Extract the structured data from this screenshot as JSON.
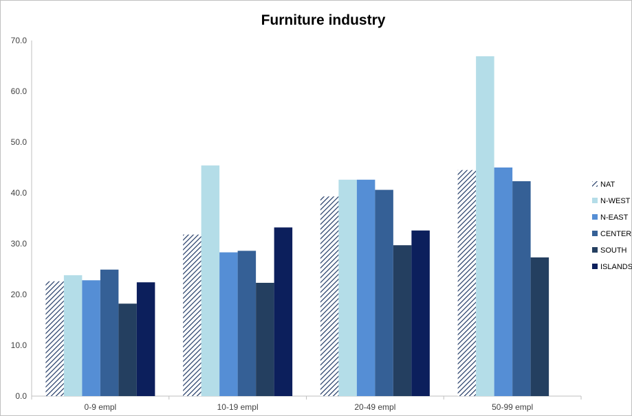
{
  "chart_data": {
    "type": "bar",
    "title": "Furniture industry",
    "categories": [
      "0-9 empl",
      "10-19 empl",
      "20-49 empl",
      "50-99 empl"
    ],
    "ylim": [
      0,
      70
    ],
    "yticks": [
      "0.0",
      "10.0",
      "20.0",
      "30.0",
      "40.0",
      "50.0",
      "60.0",
      "70.0"
    ],
    "grid": false,
    "legend": "right",
    "series": [
      {
        "name": "NAT",
        "color": "#1f3864",
        "pattern": "diagonal-hatch",
        "values": [
          22.6,
          31.8,
          39.3,
          44.5
        ]
      },
      {
        "name": "N-WEST",
        "color": "#b4dde8",
        "values": [
          23.8,
          45.4,
          42.6,
          66.9
        ]
      },
      {
        "name": "N-EAST",
        "color": "#558ed5",
        "values": [
          22.8,
          28.3,
          42.6,
          45.0
        ]
      },
      {
        "name": "CENTER",
        "color": "#356096",
        "values": [
          24.9,
          28.6,
          40.6,
          42.3
        ]
      },
      {
        "name": "SOUTH",
        "color": "#243f60",
        "values": [
          18.2,
          22.3,
          29.7,
          27.3
        ]
      },
      {
        "name": "ISLANDS",
        "color": "#0c1f5c",
        "values": [
          22.4,
          33.2,
          32.6,
          null
        ]
      }
    ]
  }
}
